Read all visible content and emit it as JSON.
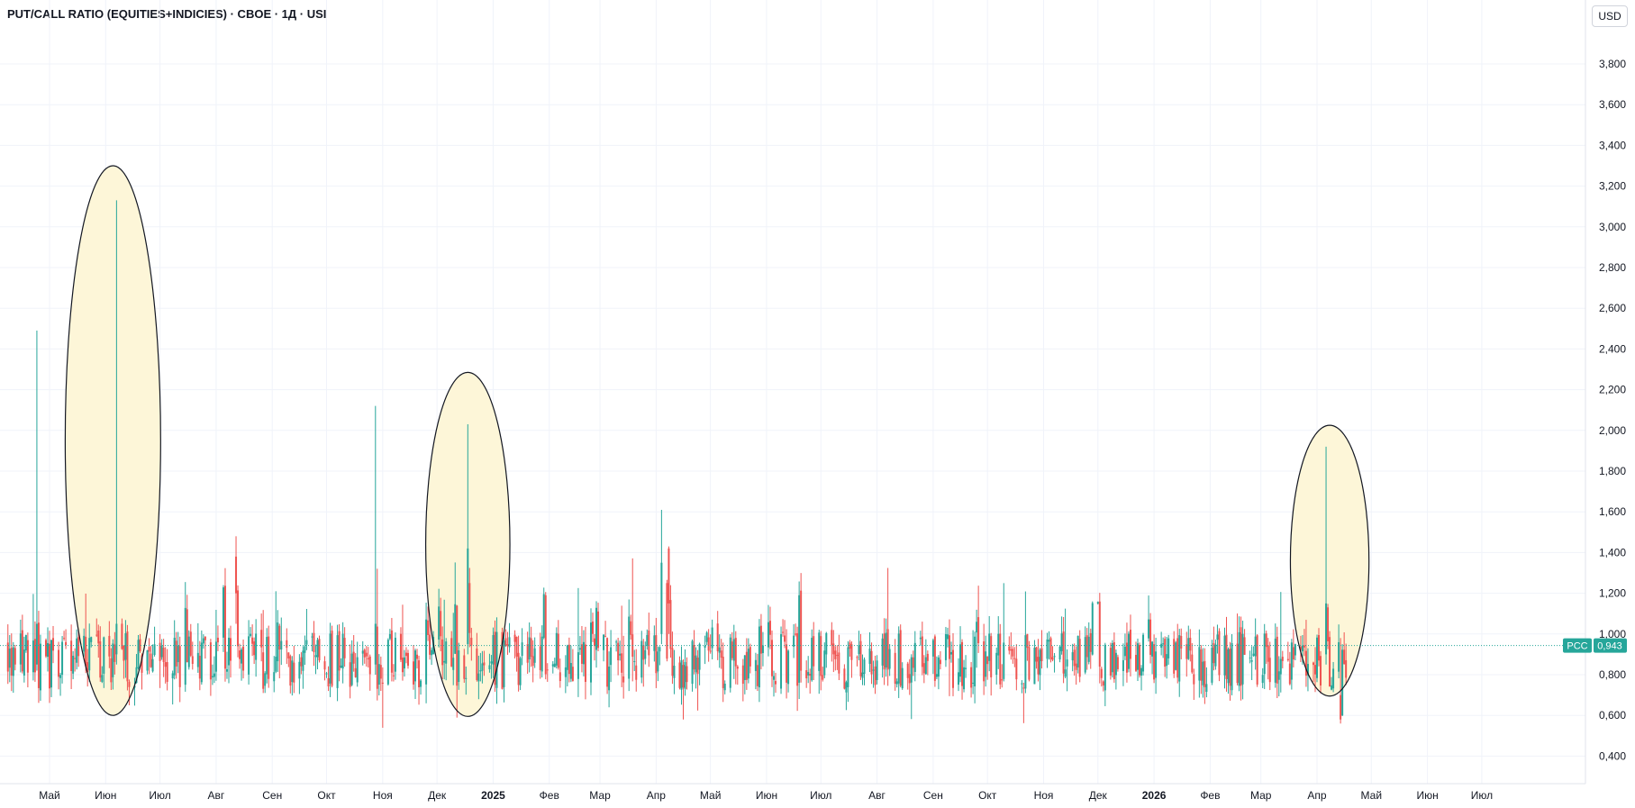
{
  "chart_data": {
    "type": "candlestick",
    "title": "PUT/CALL RATIO (EQUITIES+INDICIES) · CBOE · 1Д · USI",
    "currency": "USD",
    "ylim": [
      0.3,
      3.96
    ],
    "y_ticks": [
      "0,400",
      "0,600",
      "0,800",
      "1,000",
      "1,200",
      "1,400",
      "1,600",
      "1,800",
      "2,000",
      "2,200",
      "2,400",
      "2,600",
      "2,800",
      "3,000",
      "3,200",
      "3,400",
      "3,600",
      "3,800"
    ],
    "y_tick_values": [
      0.4,
      0.6,
      0.8,
      1.0,
      1.2,
      1.4,
      1.6,
      1.8,
      2.0,
      2.2,
      2.4,
      2.6,
      2.8,
      3.0,
      3.2,
      3.4,
      3.6,
      3.8
    ],
    "x_ticks": [
      {
        "label": "Май",
        "date": "2024-05-01",
        "bold": false
      },
      {
        "label": "Июн",
        "date": "2024-06-01",
        "bold": false
      },
      {
        "label": "Июл",
        "date": "2024-07-01",
        "bold": false
      },
      {
        "label": "Авг",
        "date": "2024-08-01",
        "bold": false
      },
      {
        "label": "Сен",
        "date": "2024-09-01",
        "bold": false
      },
      {
        "label": "Окт",
        "date": "2024-10-01",
        "bold": false
      },
      {
        "label": "Ноя",
        "date": "2024-11-01",
        "bold": false
      },
      {
        "label": "Дек",
        "date": "2024-12-01",
        "bold": false
      },
      {
        "label": "2025",
        "date": "2025-01-01",
        "bold": true
      },
      {
        "label": "Фев",
        "date": "2025-02-01",
        "bold": false
      },
      {
        "label": "Мар",
        "date": "2025-03-01",
        "bold": false
      },
      {
        "label": "Апр",
        "date": "2025-04-01",
        "bold": false
      },
      {
        "label": "Май",
        "date": "2025-05-01",
        "bold": false
      },
      {
        "label": "Июн",
        "date": "2025-06-01",
        "bold": false
      },
      {
        "label": "Июл",
        "date": "2025-07-01",
        "bold": false
      },
      {
        "label": "Авг",
        "date": "2025-08-01",
        "bold": false
      },
      {
        "label": "Сен",
        "date": "2025-09-01",
        "bold": false
      },
      {
        "label": "Окт",
        "date": "2025-10-01",
        "bold": false
      },
      {
        "label": "Ноя",
        "date": "2025-11-01",
        "bold": false
      },
      {
        "label": "Дек",
        "date": "2025-12-01",
        "bold": false
      },
      {
        "label": "2026",
        "date": "2026-01-01",
        "bold": true
      },
      {
        "label": "Фев",
        "date": "2026-02-01",
        "bold": false
      },
      {
        "label": "Мар",
        "date": "2026-03-01",
        "bold": false
      },
      {
        "label": "Апр",
        "date": "2026-04-01",
        "bold": false
      },
      {
        "label": "Май",
        "date": "2026-05-01",
        "bold": false
      },
      {
        "label": "Июн",
        "date": "2026-06-01",
        "bold": false
      },
      {
        "label": "Июл",
        "date": "2026-07-01",
        "bold": false
      }
    ],
    "date_range": [
      "2024-04-08",
      "2026-04-17"
    ],
    "last_value": {
      "label": "PCC",
      "value": "0,943",
      "raw": 0.943
    },
    "up_color": "#26a69a",
    "down_color": "#ef5350",
    "highlight_fill": "#fdf6d8",
    "highlights": [
      {
        "center_date": "2024-06-05",
        "center_value": 1.95,
        "date_halfwidth_days": 17,
        "value_halfheight": 1.35
      },
      {
        "center_date": "2024-12-18",
        "center_value": 1.44,
        "date_halfwidth_days": 15,
        "value_halfheight": 0.845
      },
      {
        "center_date": "2026-04-08",
        "center_value": 1.36,
        "date_halfwidth_days": 14,
        "value_halfheight": 0.665
      }
    ],
    "spikes": [
      {
        "date": "2024-04-24",
        "open": 0.85,
        "close": 1.05,
        "high": 2.49,
        "low": 0.82
      },
      {
        "date": "2024-06-07",
        "open": 0.9,
        "close": 1.05,
        "high": 3.13,
        "low": 0.85
      },
      {
        "date": "2024-08-12",
        "open": 1.38,
        "close": 1.2,
        "high": 1.48,
        "low": 1.05
      },
      {
        "date": "2024-09-28",
        "open": 0.9,
        "close": 1.42,
        "high": 1.61,
        "low": 0.85
      },
      {
        "date": "2024-10-28",
        "open": 0.85,
        "close": 1.05,
        "high": 2.12,
        "low": 0.8
      },
      {
        "date": "2024-12-18",
        "open": 0.95,
        "close": 1.42,
        "high": 2.03,
        "low": 0.9
      },
      {
        "date": "2025-04-04",
        "open": 1.0,
        "close": 1.35,
        "high": 1.61,
        "low": 0.95
      },
      {
        "date": "2025-04-08",
        "open": 1.42,
        "close": 1.15,
        "high": 1.43,
        "low": 1.0
      },
      {
        "date": "2026-04-06",
        "open": 0.9,
        "close": 1.15,
        "high": 1.92,
        "low": 0.85
      },
      {
        "date": "2026-04-14",
        "open": 0.7,
        "close": 0.58,
        "high": 0.98,
        "low": 0.56
      }
    ],
    "series_model": {
      "mean": 0.9,
      "noise": 0.08,
      "count_days": 740
    }
  }
}
